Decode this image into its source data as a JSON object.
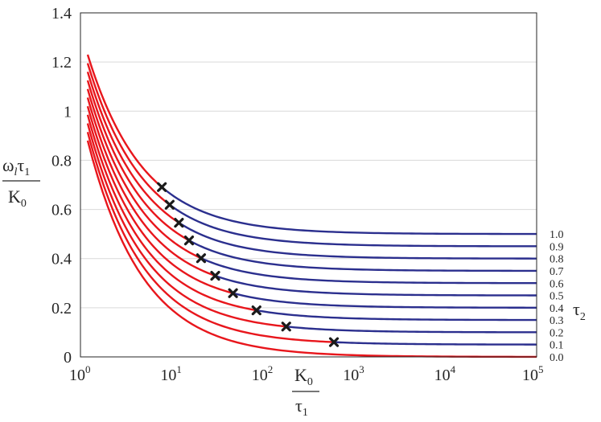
{
  "chart_data": {
    "type": "line",
    "x_scale": "log",
    "xlim": [
      1,
      100000
    ],
    "ylim": [
      0,
      1.4
    ],
    "x_ticks": [
      {
        "value": 1,
        "base": "10",
        "exp": "0"
      },
      {
        "value": 10,
        "base": "10",
        "exp": "1"
      },
      {
        "value": 100,
        "base": "10",
        "exp": "2"
      },
      {
        "value": 1000,
        "base": "10",
        "exp": "3"
      },
      {
        "value": 10000,
        "base": "10",
        "exp": "4"
      },
      {
        "value": 100000,
        "base": "10",
        "exp": "5"
      }
    ],
    "y_ticks": [
      {
        "value": 0,
        "label": "0"
      },
      {
        "value": 0.2,
        "label": "0.2"
      },
      {
        "value": 0.4,
        "label": "0.4"
      },
      {
        "value": 0.6,
        "label": "0.6"
      },
      {
        "value": 0.8,
        "label": "0.8"
      },
      {
        "value": 1.0,
        "label": "1"
      },
      {
        "value": 1.2,
        "label": "1.2"
      },
      {
        "value": 1.4,
        "label": "1.4"
      }
    ],
    "xlabel": {
      "num_main": "K",
      "num_sub": "0",
      "den_main": "τ",
      "den_sub": "1"
    },
    "ylabel": {
      "num_main": "ω",
      "num_sub1": "l",
      "num_mid": "τ",
      "num_sub2": "1",
      "den_main": "K",
      "den_sub": "0"
    },
    "legend_title": {
      "main": "τ",
      "sub": "2"
    },
    "grid": {
      "horizontal": true,
      "vertical": false
    },
    "colors": {
      "transient": "#e8161c",
      "steady": "#2b2f8e",
      "marker": "#1a1a1a",
      "grid": "#d9d9d9"
    },
    "series": [
      {
        "label": "0.0",
        "plateau": 0.0,
        "start": 0.88
      },
      {
        "label": "0.1",
        "plateau": 0.05,
        "start": 0.915,
        "marker": [
          600,
          0.07
        ]
      },
      {
        "label": "0.2",
        "plateau": 0.1,
        "start": 0.95,
        "marker": [
          180,
          0.145
        ]
      },
      {
        "label": "0.3",
        "plateau": 0.15,
        "start": 0.985,
        "marker": [
          85,
          0.215
        ]
      },
      {
        "label": "0.4",
        "plateau": 0.2,
        "start": 1.02,
        "marker": [
          47,
          0.29
        ]
      },
      {
        "label": "0.5",
        "plateau": 0.25,
        "start": 1.055,
        "marker": [
          30,
          0.36
        ]
      },
      {
        "label": "0.6",
        "plateau": 0.3,
        "start": 1.09,
        "marker": [
          21,
          0.43
        ]
      },
      {
        "label": "0.7",
        "plateau": 0.35,
        "start": 1.125,
        "marker": [
          15.5,
          0.505
        ]
      },
      {
        "label": "0.8",
        "plateau": 0.4,
        "start": 1.16,
        "marker": [
          12,
          0.575
        ]
      },
      {
        "label": "0.9",
        "plateau": 0.45,
        "start": 1.195,
        "marker": [
          9.5,
          0.645
        ]
      },
      {
        "label": "1.0",
        "plateau": 0.5,
        "start": 1.23,
        "marker": [
          7.8,
          0.72
        ]
      }
    ]
  }
}
